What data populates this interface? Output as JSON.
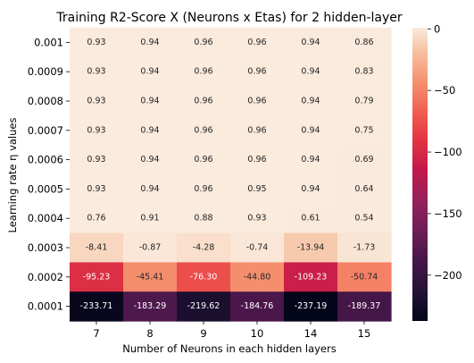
{
  "chart_data": {
    "type": "heatmap",
    "title": "Training R2-Score X (Neurons x Etas) for 2 hidden-layer",
    "xlabel": "Number of Neurons in each hidden layers",
    "ylabel": "Learning rate η values",
    "x_categories": [
      "7",
      "8",
      "9",
      "10",
      "14",
      "15"
    ],
    "y_categories": [
      "0.001",
      "0.0009",
      "0.0008",
      "0.0007",
      "0.0006",
      "0.0005",
      "0.0004",
      "0.0003",
      "0.0002",
      "0.0001"
    ],
    "values": [
      [
        0.93,
        0.94,
        0.96,
        0.96,
        0.94,
        0.86
      ],
      [
        0.93,
        0.94,
        0.96,
        0.96,
        0.94,
        0.83
      ],
      [
        0.93,
        0.94,
        0.96,
        0.96,
        0.94,
        0.79
      ],
      [
        0.93,
        0.94,
        0.96,
        0.96,
        0.94,
        0.75
      ],
      [
        0.93,
        0.94,
        0.96,
        0.96,
        0.94,
        0.69
      ],
      [
        0.93,
        0.94,
        0.96,
        0.95,
        0.94,
        0.64
      ],
      [
        0.76,
        0.91,
        0.88,
        0.93,
        0.61,
        0.54
      ],
      [
        -8.41,
        -0.87,
        -4.28,
        -0.74,
        -13.94,
        -1.73
      ],
      [
        -95.23,
        -45.41,
        -76.3,
        -44.8,
        -109.23,
        -50.74
      ],
      [
        -233.71,
        -183.29,
        -219.62,
        -184.76,
        -237.19,
        -189.37
      ]
    ],
    "colormap": "rocket",
    "vmin": -237.19,
    "vmax": 0.96,
    "colorbar_ticks": [
      0,
      -50,
      -100,
      -150,
      -200
    ]
  }
}
